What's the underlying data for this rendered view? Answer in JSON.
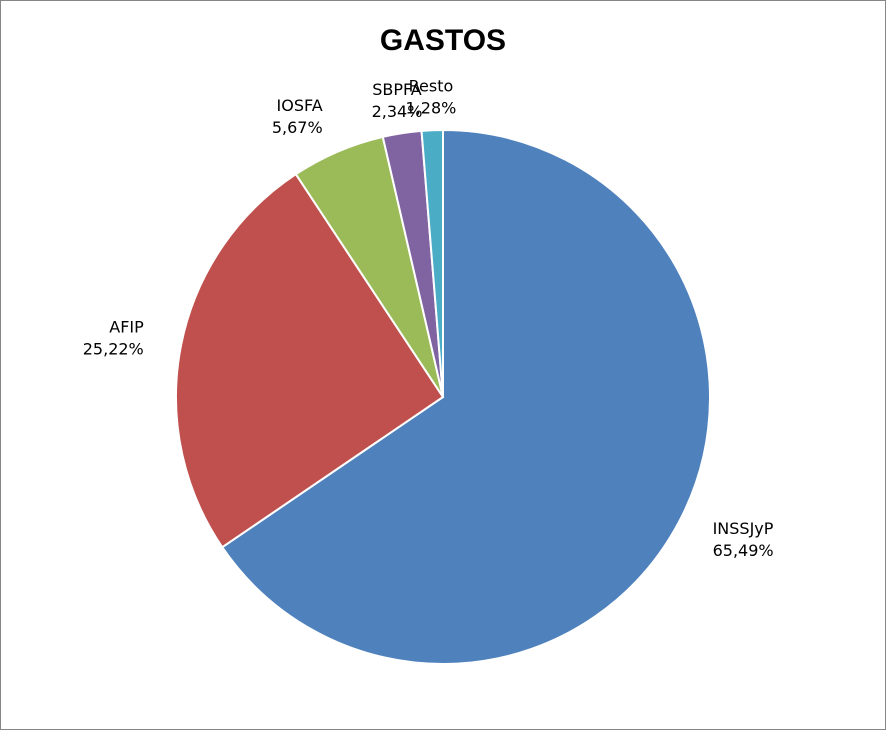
{
  "chart_data": {
    "type": "pie",
    "title": "GASTOS",
    "categories": [
      "INSSJyP",
      "AFIP",
      "IOSFA",
      "SBPFA",
      "Resto"
    ],
    "values": [
      65.49,
      25.22,
      5.67,
      2.34,
      1.28
    ],
    "value_labels": [
      "65,49%",
      "25,22%",
      "5,67%",
      "2,34%",
      "1,28%"
    ],
    "colors": [
      "#4f81bd",
      "#c0504d",
      "#9bbb59",
      "#8064a2",
      "#4bacc6"
    ]
  }
}
